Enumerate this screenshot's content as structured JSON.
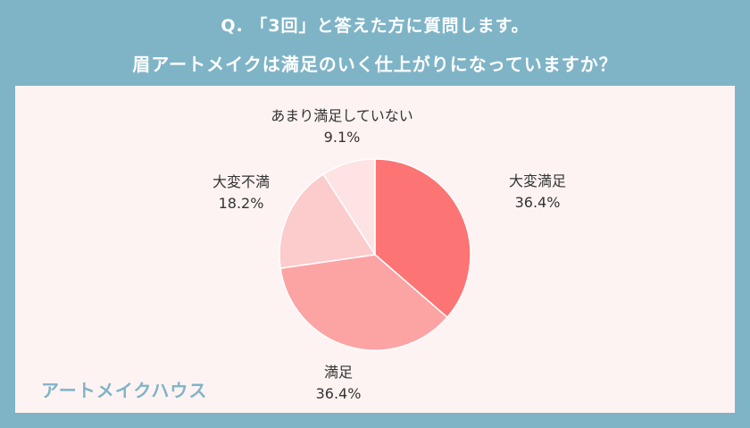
{
  "question": {
    "line1": "Q. 「3回」と答えた方に質問します。",
    "line2": "眉アートメイクは満足のいく仕上がりになっていますか？"
  },
  "brand": "アートメイクハウス",
  "chart_data": {
    "type": "pie",
    "slices": [
      {
        "label": "大変満足",
        "value": 36.4,
        "display": "36.4%",
        "color": "#fc7474"
      },
      {
        "label": "満足",
        "value": 36.4,
        "display": "36.4%",
        "color": "#fca3a4"
      },
      {
        "label": "大変不満",
        "value": 18.2,
        "display": "18.2%",
        "color": "#fccbcc"
      },
      {
        "label": "あまり満足していない",
        "value": 9.1,
        "display": "9.1%",
        "color": "#fde3e3"
      }
    ],
    "start_angle_deg": 0,
    "direction": "clockwise"
  }
}
